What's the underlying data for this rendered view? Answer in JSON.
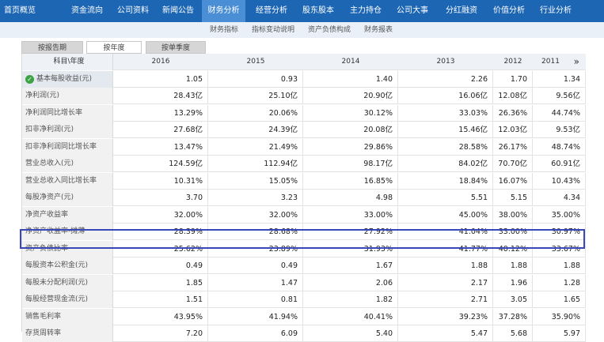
{
  "topnav": {
    "items": [
      "首页概览",
      "资金流向",
      "公司资料",
      "新闻公告",
      "财务分析",
      "经营分析",
      "股东股本",
      "主力持仓",
      "公司大事",
      "分红融资",
      "价值分析",
      "行业分析"
    ],
    "active_index": 4
  },
  "subnav": {
    "items": [
      "财务指标",
      "指标变动说明",
      "资产负债构成",
      "财务报表"
    ]
  },
  "tabs": {
    "items": [
      "按报告期",
      "按年度",
      "按单季度"
    ],
    "active_index": 1
  },
  "table": {
    "header_label": "科目\\年度",
    "years": [
      "2016",
      "2015",
      "2014",
      "2013",
      "2012",
      "2011"
    ],
    "more_icon": "»",
    "rows": [
      {
        "label": "基本每股收益(元)",
        "values": [
          "1.05",
          "0.93",
          "1.40",
          "2.26",
          "1.70",
          "1.34"
        ]
      },
      {
        "label": "净利润(元)",
        "values": [
          "28.43亿",
          "25.10亿",
          "20.90亿",
          "16.06亿",
          "12.08亿",
          "9.56亿"
        ]
      },
      {
        "label": "净利润同比增长率",
        "values": [
          "13.29%",
          "20.06%",
          "30.12%",
          "33.03%",
          "26.36%",
          "44.74%"
        ]
      },
      {
        "label": "扣非净利润(元)",
        "values": [
          "27.68亿",
          "24.39亿",
          "20.08亿",
          "15.46亿",
          "12.03亿",
          "9.53亿"
        ]
      },
      {
        "label": "扣非净利润同比增长率",
        "values": [
          "13.47%",
          "21.49%",
          "29.86%",
          "28.58%",
          "26.17%",
          "48.74%"
        ]
      },
      {
        "label": "营业总收入(元)",
        "values": [
          "124.59亿",
          "112.94亿",
          "98.17亿",
          "84.02亿",
          "70.70亿",
          "60.91亿"
        ]
      },
      {
        "label": "营业总收入同比增长率",
        "values": [
          "10.31%",
          "15.05%",
          "16.85%",
          "18.84%",
          "16.07%",
          "10.43%"
        ]
      },
      {
        "label": "每股净资产(元)",
        "values": [
          "3.70",
          "3.23",
          "4.98",
          "5.51",
          "5.15",
          "4.34"
        ]
      },
      {
        "label": "净资产收益率",
        "values": [
          "32.00%",
          "32.00%",
          "33.00%",
          "45.00%",
          "38.00%",
          "35.00%"
        ]
      },
      {
        "label": "净资产收益率-摊薄",
        "values": [
          "28.39%",
          "28.68%",
          "27.92%",
          "41.04%",
          "33.00%",
          "30.97%"
        ]
      },
      {
        "label": "资产负债比率",
        "values": [
          "25.62%",
          "23.89%",
          "31.93%",
          "41.77%",
          "40.12%",
          "33.67%"
        ]
      },
      {
        "label": "每股资本公积金(元)",
        "values": [
          "0.49",
          "0.49",
          "1.67",
          "1.88",
          "1.88",
          "1.88"
        ]
      },
      {
        "label": "每股未分配利润(元)",
        "values": [
          "1.85",
          "1.47",
          "2.06",
          "2.17",
          "1.96",
          "1.28"
        ]
      },
      {
        "label": "每股经营现金流(元)",
        "values": [
          "1.51",
          "0.81",
          "1.82",
          "2.71",
          "3.05",
          "1.65"
        ]
      },
      {
        "label": "销售毛利率",
        "values": [
          "43.95%",
          "41.94%",
          "40.41%",
          "39.23%",
          "37.28%",
          "35.90%"
        ]
      },
      {
        "label": "存货周转率",
        "values": [
          "7.20",
          "6.09",
          "5.40",
          "5.47",
          "5.68",
          "5.97"
        ]
      }
    ]
  },
  "colors": {
    "topnav_bg": "#1d66b3",
    "active_tab": "#4a8fd6",
    "highlight_border": "#3a47b8",
    "check_green": "#3ca245"
  }
}
